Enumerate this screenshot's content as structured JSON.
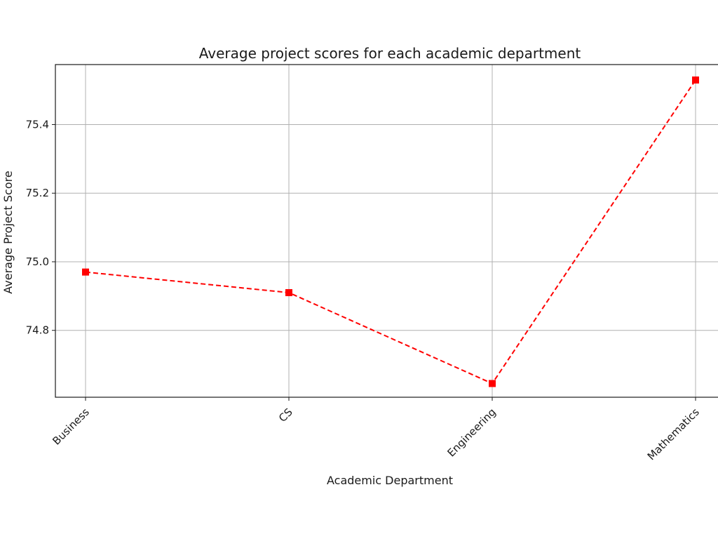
{
  "chart_data": {
    "type": "line",
    "title": "Average project scores for each academic department",
    "xlabel": "Academic Department",
    "ylabel": "Average Project Score",
    "categories": [
      "Business",
      "CS",
      "Engineering",
      "Mathematics"
    ],
    "series": [
      {
        "values": [
          74.97,
          74.91,
          74.645,
          75.53
        ],
        "color": "#ff0000",
        "line_style": "dashed",
        "marker": "square"
      }
    ],
    "yticks": [
      74.8,
      75.0,
      75.2,
      75.4
    ],
    "ytick_labels": [
      "74.8",
      "75.0",
      "75.2",
      "75.4"
    ],
    "ylim": [
      74.605,
      75.575
    ],
    "grid": true,
    "xtick_rotation": "45 degrees"
  }
}
